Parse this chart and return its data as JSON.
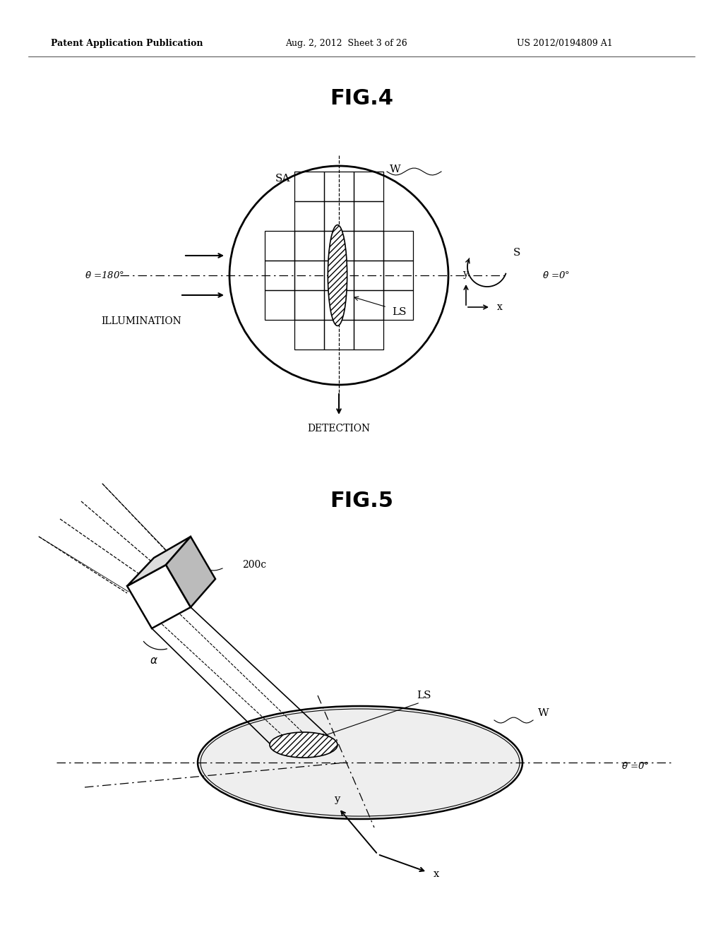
{
  "bg_color": "#ffffff",
  "header_left": "Patent Application Publication",
  "header_mid": "Aug. 2, 2012  Sheet 3 of 26",
  "header_right": "US 2012/0194809 A1",
  "fig4_title": "FIG.4",
  "fig5_title": "FIG.5"
}
